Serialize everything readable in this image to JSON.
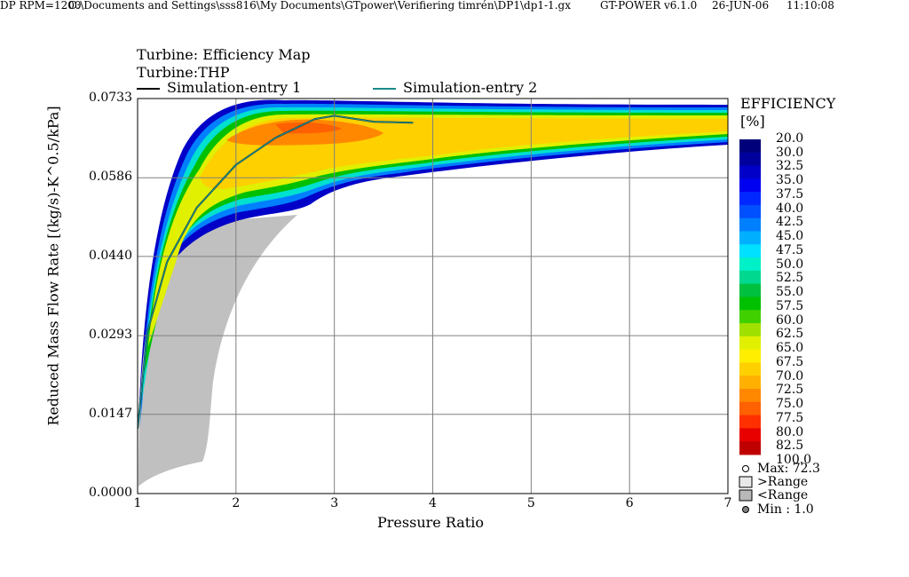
{
  "header": {
    "left": "DP RPM=1200",
    "path": "C:\\Documents and Settings\\sss816\\My Documents\\GTpower\\Verifiering timrén\\DP1\\dp1-1.gx",
    "version": "GT-POWER v6.1.0",
    "date": "26-JUN-06",
    "time": "11:10:08"
  },
  "chart_data": {
    "type": "heatmap",
    "title": "Turbine: Efficiency Map",
    "subtitle": "Turbine:THP",
    "xlabel": "Pressure Ratio",
    "ylabel": "Reduced Mass Flow Rate [(kg/s)-K^0.5/kPa]",
    "xlim": [
      1,
      7
    ],
    "ylim": [
      0.0,
      0.0733
    ],
    "x_ticks": [
      "1",
      "2",
      "3",
      "4",
      "5",
      "6",
      "7"
    ],
    "y_ticks": [
      "0.0000",
      "0.0147",
      "0.0293",
      "0.0440",
      "0.0586",
      "0.0733"
    ],
    "grid": true,
    "legend": [
      {
        "name": "Simulation-entry 1",
        "color": "#000000"
      },
      {
        "name": "Simulation-entry 2",
        "color": "#1a8a8a"
      }
    ],
    "colorbar": {
      "title": "EFFICIENCY",
      "unit": "[%]",
      "levels": [
        "20.0",
        "30.0",
        "32.5",
        "35.0",
        "37.5",
        "40.0",
        "42.5",
        "45.0",
        "47.5",
        "50.0",
        "52.5",
        "55.0",
        "57.5",
        "60.0",
        "62.5",
        "65.0",
        "67.5",
        "70.0",
        "72.5",
        "75.0",
        "77.5",
        "80.0",
        "82.5",
        "100.0"
      ],
      "colors": [
        "#00007a",
        "#00009c",
        "#0000c8",
        "#0000f0",
        "#0028ff",
        "#0050ff",
        "#0080ff",
        "#00b0ff",
        "#00e0ff",
        "#00f0c8",
        "#00d890",
        "#00c040",
        "#00c000",
        "#40d000",
        "#a0e000",
        "#e0f000",
        "#ffee00",
        "#ffd000",
        "#ffb000",
        "#ff8800",
        "#ff6000",
        "#ff3000",
        "#e80000",
        "#c00000"
      ]
    },
    "footer": {
      "max": "Max: 72.3",
      "above": ">Range",
      "below": "<Range",
      "min": "Min : 1.0"
    },
    "series": [
      {
        "name": "Simulation-entry 1",
        "x": [
          1.0,
          1.1,
          1.3,
          1.6,
          2.0,
          2.4,
          2.8,
          3.0,
          3.4,
          3.8
        ],
        "y": [
          0.012,
          0.03,
          0.043,
          0.053,
          0.061,
          0.066,
          0.0695,
          0.0701,
          0.069,
          0.0688
        ]
      },
      {
        "name": "Simulation-entry 2",
        "x": [
          1.0,
          1.1,
          1.3,
          1.6,
          2.0,
          2.4,
          2.8,
          3.0,
          3.4,
          3.8
        ],
        "y": [
          0.012,
          0.03,
          0.043,
          0.053,
          0.061,
          0.066,
          0.0695,
          0.0701,
          0.069,
          0.0688
        ]
      }
    ]
  }
}
